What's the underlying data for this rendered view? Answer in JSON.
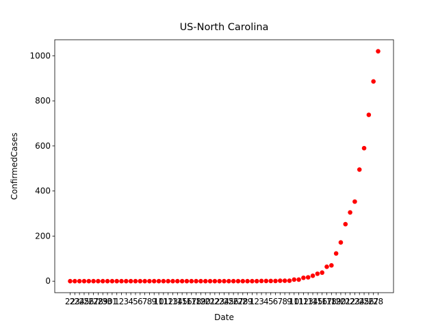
{
  "chart_data": {
    "type": "scatter",
    "title": "US-North Carolina",
    "x_label": "Date",
    "y_label": "ConfirmedCases",
    "color": "#ff0000",
    "categories": [
      "22",
      "23",
      "24",
      "25",
      "26",
      "27",
      "28",
      "29",
      "30",
      "31",
      "1",
      "2",
      "3",
      "4",
      "5",
      "6",
      "7",
      "8",
      "9",
      "10",
      "11",
      "12",
      "13",
      "14",
      "15",
      "16",
      "17",
      "18",
      "19",
      "20",
      "21",
      "22",
      "23",
      "24",
      "25",
      "26",
      "27",
      "28",
      "29",
      "1",
      "2",
      "3",
      "4",
      "5",
      "6",
      "7",
      "8",
      "9",
      "10",
      "11",
      "12",
      "13",
      "14",
      "15",
      "16",
      "17",
      "18",
      "19",
      "20",
      "21",
      "22",
      "23",
      "24",
      "25",
      "26",
      "27",
      "28"
    ],
    "values": [
      0,
      0,
      0,
      0,
      0,
      0,
      0,
      0,
      0,
      0,
      0,
      0,
      0,
      0,
      0,
      0,
      0,
      0,
      0,
      0,
      0,
      0,
      0,
      0,
      0,
      0,
      0,
      0,
      0,
      0,
      0,
      0,
      0,
      0,
      0,
      0,
      0,
      0,
      0,
      0,
      0,
      1,
      1,
      1,
      1,
      2,
      2,
      2,
      7,
      7,
      15,
      17,
      24,
      33,
      38,
      64,
      70,
      123,
      172,
      253,
      305,
      353,
      495,
      590,
      738,
      886,
      1020
    ],
    "ylim": [
      -51,
      1071
    ],
    "yticks": [
      0,
      200,
      400,
      600,
      800,
      1000
    ]
  }
}
